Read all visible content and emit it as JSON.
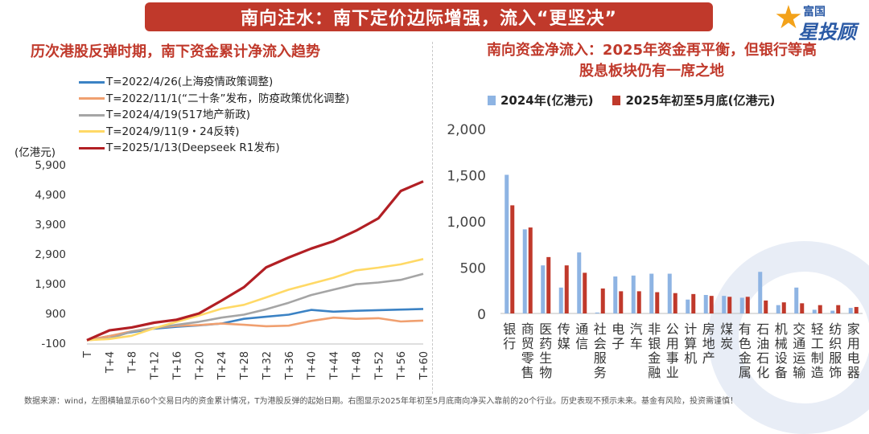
{
  "banner": "南向注水：南下定价边际增强，流入“更坚决”",
  "logo": {
    "top": "富国",
    "main": "星投顾"
  },
  "left_title": "历次港股反弹时期，南下资金累计净流入趋势",
  "right_title_line1": "南向资金净流入：2025年资金再平衡，但银行等高",
  "right_title_line2": "股息板块仍有一席之地",
  "footer": "数据来源：wind，左图横轴显示60个交易日内的资金累计情况，T为港股反弹的起始日期。右图显示2025年年初至5月底南向净买入靠前的20个行业。历史表现不预示未来。基金有风险，投资需谨慎！",
  "chart_data": [
    {
      "type": "line",
      "title": "历次港股反弹时期，南下资金累计净流入趋势",
      "ylabel": "(亿港元)",
      "ylim": [
        -100,
        5900
      ],
      "yticks": [
        "5,900",
        "4,900",
        "3,900",
        "2,900",
        "1,900",
        "900",
        "-100"
      ],
      "ytick_values": [
        5900,
        4900,
        3900,
        2900,
        1900,
        900,
        -100
      ],
      "xticks": [
        "T",
        "T+4",
        "T+8",
        "T+12",
        "T+16",
        "T+20",
        "T+24",
        "T+28",
        "T+32",
        "T+36",
        "T+40",
        "T+44",
        "T+48",
        "T+52",
        "T+56",
        "T+60"
      ],
      "x_range": [
        0,
        60
      ],
      "series": [
        {
          "name": "T=2022/4/26(上海疫情政策调整)",
          "color": "#3b82c4",
          "points": [
            [
              0,
              0
            ],
            [
              4,
              140
            ],
            [
              8,
              270
            ],
            [
              12,
              390
            ],
            [
              16,
              450
            ],
            [
              20,
              500
            ],
            [
              24,
              560
            ],
            [
              28,
              720
            ],
            [
              32,
              790
            ],
            [
              36,
              860
            ],
            [
              40,
              1020
            ],
            [
              44,
              960
            ],
            [
              48,
              990
            ],
            [
              52,
              1010
            ],
            [
              56,
              1030
            ],
            [
              60,
              1050
            ]
          ]
        },
        {
          "name": "T=2022/11/1(“二十条”发布，防疫政策优化调整)",
          "color": "#f0a070",
          "points": [
            [
              0,
              0
            ],
            [
              4,
              140
            ],
            [
              8,
              300
            ],
            [
              12,
              420
            ],
            [
              16,
              480
            ],
            [
              20,
              510
            ],
            [
              24,
              560
            ],
            [
              28,
              520
            ],
            [
              32,
              470
            ],
            [
              36,
              490
            ],
            [
              40,
              650
            ],
            [
              44,
              760
            ],
            [
              48,
              720
            ],
            [
              52,
              740
            ],
            [
              56,
              630
            ],
            [
              60,
              660
            ]
          ]
        },
        {
          "name": "T=2024/4/19(517地产新政)",
          "color": "#a5a5a5",
          "points": [
            [
              0,
              0
            ],
            [
              4,
              60
            ],
            [
              8,
              290
            ],
            [
              12,
              410
            ],
            [
              16,
              520
            ],
            [
              20,
              620
            ],
            [
              24,
              760
            ],
            [
              28,
              860
            ],
            [
              32,
              1040
            ],
            [
              36,
              1260
            ],
            [
              40,
              1520
            ],
            [
              44,
              1700
            ],
            [
              48,
              1880
            ],
            [
              52,
              1940
            ],
            [
              56,
              2030
            ],
            [
              60,
              2230
            ]
          ]
        },
        {
          "name": "T=2024/9/11(9・24反转)",
          "color": "#ffd966",
          "points": [
            [
              0,
              0
            ],
            [
              4,
              40
            ],
            [
              8,
              150
            ],
            [
              12,
              400
            ],
            [
              16,
              620
            ],
            [
              20,
              830
            ],
            [
              24,
              1060
            ],
            [
              28,
              1190
            ],
            [
              32,
              1440
            ],
            [
              36,
              1700
            ],
            [
              40,
              1900
            ],
            [
              44,
              2100
            ],
            [
              48,
              2350
            ],
            [
              52,
              2440
            ],
            [
              56,
              2550
            ],
            [
              60,
              2730
            ]
          ]
        },
        {
          "name": "T=2025/1/13(Deepseek R1发布)",
          "color": "#b21f24",
          "points": [
            [
              0,
              0
            ],
            [
              4,
              330
            ],
            [
              8,
              430
            ],
            [
              12,
              590
            ],
            [
              16,
              690
            ],
            [
              20,
              900
            ],
            [
              24,
              1330
            ],
            [
              28,
              1780
            ],
            [
              32,
              2450
            ],
            [
              36,
              2780
            ],
            [
              40,
              3080
            ],
            [
              44,
              3330
            ],
            [
              48,
              3680
            ],
            [
              52,
              4100
            ],
            [
              56,
              5020
            ],
            [
              60,
              5340
            ]
          ]
        }
      ]
    },
    {
      "type": "bar",
      "title": "南向资金净流入：2025年资金再平衡，但银行等高股息板块仍有一席之地",
      "ylim": [
        0,
        2000
      ],
      "yticks": [
        "2,000",
        "1,500",
        "1,000",
        "500",
        "0"
      ],
      "ytick_values": [
        2000,
        1500,
        1000,
        500,
        0
      ],
      "categories": [
        "银行",
        "商贸零售",
        "医药生物",
        "传媒",
        "通信",
        "社会服务",
        "电子",
        "汽车",
        "非银金融",
        "公用事业",
        "计算机",
        "房地产",
        "煤炭",
        "有色金属",
        "石油石化",
        "机械设备",
        "交通运输",
        "轻工制造",
        "纺织服饰",
        "家用电器"
      ],
      "series": [
        {
          "name": "2024年(亿港元)",
          "color": "#8eb4e3",
          "values": [
            1500,
            910,
            520,
            280,
            660,
            10,
            400,
            410,
            430,
            430,
            150,
            200,
            190,
            170,
            450,
            90,
            280,
            40,
            30,
            60
          ]
        },
        {
          "name": "2025年初至5月底(亿港元)",
          "color": "#c0392b",
          "values": [
            1170,
            930,
            610,
            520,
            440,
            270,
            240,
            240,
            230,
            220,
            210,
            190,
            180,
            180,
            140,
            120,
            110,
            90,
            90,
            70
          ]
        }
      ]
    }
  ]
}
